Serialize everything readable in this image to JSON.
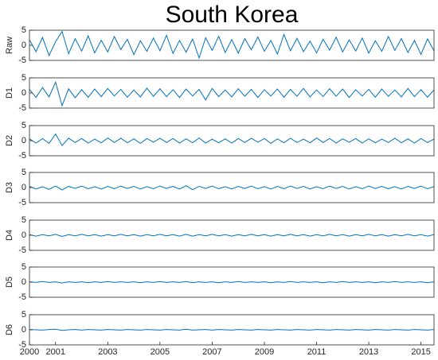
{
  "chart_data": [
    {
      "type": "line",
      "title": "South Korea",
      "ylabel": "Raw",
      "color": "#0072bd",
      "xlim": [
        2000,
        2015.5
      ],
      "ylim": [
        -5,
        5
      ],
      "yticks": [
        -5,
        0,
        5
      ],
      "x": [
        2000,
        2000.25,
        2000.5,
        2000.75,
        2001,
        2001.25,
        2001.5,
        2001.75,
        2002,
        2002.25,
        2002.5,
        2002.75,
        2003,
        2003.25,
        2003.5,
        2003.75,
        2004,
        2004.25,
        2004.5,
        2004.75,
        2005,
        2005.25,
        2005.5,
        2005.75,
        2006,
        2006.25,
        2006.5,
        2006.75,
        2007,
        2007.25,
        2007.5,
        2007.75,
        2008,
        2008.25,
        2008.5,
        2008.75,
        2009,
        2009.25,
        2009.5,
        2009.75,
        2010,
        2010.25,
        2010.5,
        2010.75,
        2011,
        2011.25,
        2011.5,
        2011.75,
        2012,
        2012.25,
        2012.5,
        2012.75,
        2013,
        2013.25,
        2013.5,
        2013.75,
        2014,
        2014.25,
        2014.5,
        2014.75,
        2015,
        2015.25,
        2015.5
      ],
      "values": [
        1.8,
        -2.1,
        2.6,
        -3.4,
        1.2,
        4.6,
        -2.8,
        2.2,
        -1.9,
        3.1,
        -2.5,
        1.7,
        -2.2,
        2.9,
        -1.4,
        2.0,
        -3.1,
        1.5,
        -2.0,
        2.4,
        -1.8,
        3.3,
        -2.7,
        1.6,
        -2.3,
        2.1,
        -4.2,
        2.5,
        -1.7,
        3.0,
        -2.4,
        1.9,
        -2.6,
        2.2,
        -1.5,
        2.8,
        -2.0,
        1.6,
        -2.9,
        3.6,
        -1.8,
        2.3,
        -2.1,
        1.4,
        -2.5,
        2.0,
        -1.6,
        2.7,
        -2.2,
        1.8,
        -1.9,
        2.4,
        -2.6,
        1.5,
        -2.0,
        2.9,
        -1.7,
        2.2,
        -2.4,
        1.6,
        -3.0,
        2.1,
        -1.8
      ]
    },
    {
      "type": "line",
      "ylabel": "D1",
      "color": "#0072bd",
      "xlim": [
        2000,
        2015.5
      ],
      "ylim": [
        -5,
        5
      ],
      "yticks": [
        -5,
        0,
        5
      ],
      "x": [
        2000,
        2000.25,
        2000.5,
        2000.75,
        2001,
        2001.25,
        2001.5,
        2001.75,
        2002,
        2002.25,
        2002.5,
        2002.75,
        2003,
        2003.25,
        2003.5,
        2003.75,
        2004,
        2004.25,
        2004.5,
        2004.75,
        2005,
        2005.25,
        2005.5,
        2005.75,
        2006,
        2006.25,
        2006.5,
        2006.75,
        2007,
        2007.25,
        2007.5,
        2007.75,
        2008,
        2008.25,
        2008.5,
        2008.75,
        2009,
        2009.25,
        2009.5,
        2009.75,
        2010,
        2010.25,
        2010.5,
        2010.75,
        2011,
        2011.25,
        2011.5,
        2011.75,
        2012,
        2012.25,
        2012.5,
        2012.75,
        2013,
        2013.25,
        2013.5,
        2013.75,
        2014,
        2014.25,
        2014.5,
        2014.75,
        2015,
        2015.25,
        2015.5
      ],
      "values": [
        1.2,
        -1.5,
        1.8,
        -1.3,
        3.6,
        -4.2,
        1.4,
        -1.6,
        1.1,
        -1.4,
        1.3,
        -1.2,
        1.5,
        -1.0,
        1.2,
        -1.4,
        1.0,
        -1.3,
        1.6,
        -1.1,
        1.4,
        -1.2,
        1.1,
        -1.5,
        1.3,
        -1.0,
        1.2,
        -2.3,
        1.5,
        -1.2,
        1.0,
        -1.3,
        1.4,
        -1.1,
        1.2,
        -1.5,
        1.1,
        -1.0,
        1.3,
        -1.4,
        1.2,
        -1.1,
        1.5,
        -1.3,
        1.0,
        -1.2,
        1.4,
        -1.1,
        1.3,
        -1.5,
        1.1,
        -1.0,
        1.2,
        -1.4,
        1.3,
        -1.1,
        1.0,
        -1.3,
        1.5,
        -1.2,
        1.1,
        -1.4,
        1.0
      ]
    },
    {
      "type": "line",
      "ylabel": "D2",
      "color": "#0072bd",
      "xlim": [
        2000,
        2015.5
      ],
      "ylim": [
        -5,
        5
      ],
      "yticks": [
        -5,
        0,
        5
      ],
      "x": [
        2000,
        2000.25,
        2000.5,
        2000.75,
        2001,
        2001.25,
        2001.5,
        2001.75,
        2002,
        2002.25,
        2002.5,
        2002.75,
        2003,
        2003.25,
        2003.5,
        2003.75,
        2004,
        2004.25,
        2004.5,
        2004.75,
        2005,
        2005.25,
        2005.5,
        2005.75,
        2006,
        2006.25,
        2006.5,
        2006.75,
        2007,
        2007.25,
        2007.5,
        2007.75,
        2008,
        2008.25,
        2008.5,
        2008.75,
        2009,
        2009.25,
        2009.5,
        2009.75,
        2010,
        2010.25,
        2010.5,
        2010.75,
        2011,
        2011.25,
        2011.5,
        2011.75,
        2012,
        2012.25,
        2012.5,
        2012.75,
        2013,
        2013.25,
        2013.5,
        2013.75,
        2014,
        2014.25,
        2014.5,
        2014.75,
        2015,
        2015.25,
        2015.5
      ],
      "values": [
        0.6,
        -0.8,
        0.7,
        -0.9,
        2.2,
        -1.6,
        0.8,
        -0.6,
        0.7,
        -0.8,
        0.5,
        -0.7,
        0.9,
        -0.6,
        0.8,
        -0.7,
        0.6,
        -0.9,
        0.7,
        -0.5,
        0.8,
        -0.6,
        0.7,
        -0.8,
        0.6,
        -0.7,
        0.9,
        -0.8,
        0.5,
        -0.7,
        0.6,
        -0.8,
        0.7,
        -0.6,
        0.8,
        -0.5,
        0.7,
        -0.9,
        0.6,
        -0.7,
        0.8,
        -0.6,
        0.5,
        -0.7,
        0.9,
        -0.6,
        0.7,
        -0.8,
        0.6,
        -0.5,
        0.7,
        -0.8,
        0.6,
        -0.7,
        0.5,
        -0.6,
        0.8,
        -0.7,
        0.6,
        -0.8,
        0.7,
        -0.6,
        0.5
      ]
    },
    {
      "type": "line",
      "ylabel": "D3",
      "color": "#0072bd",
      "xlim": [
        2000,
        2015.5
      ],
      "ylim": [
        -5,
        5
      ],
      "yticks": [
        -5,
        0,
        5
      ],
      "x": [
        2000,
        2000.25,
        2000.5,
        2000.75,
        2001,
        2001.25,
        2001.5,
        2001.75,
        2002,
        2002.25,
        2002.5,
        2002.75,
        2003,
        2003.25,
        2003.5,
        2003.75,
        2004,
        2004.25,
        2004.5,
        2004.75,
        2005,
        2005.25,
        2005.5,
        2005.75,
        2006,
        2006.25,
        2006.5,
        2006.75,
        2007,
        2007.25,
        2007.5,
        2007.75,
        2008,
        2008.25,
        2008.5,
        2008.75,
        2009,
        2009.25,
        2009.5,
        2009.75,
        2010,
        2010.25,
        2010.5,
        2010.75,
        2011,
        2011.25,
        2011.5,
        2011.75,
        2012,
        2012.25,
        2012.5,
        2012.75,
        2013,
        2013.25,
        2013.5,
        2013.75,
        2014,
        2014.25,
        2014.5,
        2014.75,
        2015,
        2015.25,
        2015.5
      ],
      "values": [
        0.4,
        -0.5,
        0.3,
        -0.6,
        0.5,
        -0.8,
        0.4,
        -0.3,
        0.5,
        -0.4,
        0.3,
        -0.5,
        0.4,
        -0.4,
        0.5,
        -0.3,
        0.4,
        -0.5,
        0.3,
        -0.4,
        0.5,
        -0.3,
        0.4,
        -0.5,
        0.6,
        -0.7,
        0.4,
        -0.3,
        0.5,
        -0.4,
        0.3,
        -0.5,
        0.4,
        -0.3,
        0.5,
        -0.4,
        0.3,
        -0.5,
        0.4,
        -0.4,
        0.5,
        -0.3,
        0.4,
        -0.5,
        0.3,
        -0.4,
        0.5,
        -0.3,
        0.4,
        -0.5,
        0.3,
        -0.4,
        0.5,
        -0.3,
        0.4,
        -0.4,
        0.3,
        -0.5,
        0.4,
        -0.3,
        0.5,
        -0.4,
        0.3
      ]
    },
    {
      "type": "line",
      "ylabel": "D4",
      "color": "#0072bd",
      "xlim": [
        2000,
        2015.5
      ],
      "ylim": [
        -5,
        5
      ],
      "yticks": [
        -5,
        0,
        5
      ],
      "x": [
        2000,
        2000.25,
        2000.5,
        2000.75,
        2001,
        2001.25,
        2001.5,
        2001.75,
        2002,
        2002.25,
        2002.5,
        2002.75,
        2003,
        2003.25,
        2003.5,
        2003.75,
        2004,
        2004.25,
        2004.5,
        2004.75,
        2005,
        2005.25,
        2005.5,
        2005.75,
        2006,
        2006.25,
        2006.5,
        2006.75,
        2007,
        2007.25,
        2007.5,
        2007.75,
        2008,
        2008.25,
        2008.5,
        2008.75,
        2009,
        2009.25,
        2009.5,
        2009.75,
        2010,
        2010.25,
        2010.5,
        2010.75,
        2011,
        2011.25,
        2011.5,
        2011.75,
        2012,
        2012.25,
        2012.5,
        2012.75,
        2013,
        2013.25,
        2013.5,
        2013.75,
        2014,
        2014.25,
        2014.5,
        2014.75,
        2015,
        2015.25,
        2015.5
      ],
      "values": [
        0.2,
        -0.3,
        0.2,
        -0.2,
        0.3,
        -0.4,
        0.2,
        -0.2,
        0.3,
        -0.2,
        0.2,
        -0.3,
        0.2,
        -0.2,
        0.3,
        -0.2,
        0.2,
        -0.3,
        0.2,
        -0.2,
        0.3,
        -0.2,
        0.2,
        -0.3,
        0.3,
        -0.3,
        0.2,
        -0.2,
        0.3,
        -0.2,
        0.2,
        -0.3,
        0.2,
        -0.2,
        0.3,
        -0.2,
        0.2,
        -0.3,
        0.2,
        -0.2,
        0.3,
        -0.2,
        0.2,
        -0.3,
        0.2,
        -0.2,
        0.3,
        -0.2,
        0.2,
        -0.3,
        0.2,
        -0.2,
        0.3,
        -0.2,
        0.2,
        -0.3,
        0.2,
        -0.2,
        0.3,
        -0.2,
        0.2,
        -0.3,
        0.2
      ]
    },
    {
      "type": "line",
      "ylabel": "D5",
      "color": "#0072bd",
      "xlim": [
        2000,
        2015.5
      ],
      "ylim": [
        -5,
        5
      ],
      "yticks": [
        -5,
        0,
        5
      ],
      "x": [
        2000,
        2000.25,
        2000.5,
        2000.75,
        2001,
        2001.25,
        2001.5,
        2001.75,
        2002,
        2002.25,
        2002.5,
        2002.75,
        2003,
        2003.25,
        2003.5,
        2003.75,
        2004,
        2004.25,
        2004.5,
        2004.75,
        2005,
        2005.25,
        2005.5,
        2005.75,
        2006,
        2006.25,
        2006.5,
        2006.75,
        2007,
        2007.25,
        2007.5,
        2007.75,
        2008,
        2008.25,
        2008.5,
        2008.75,
        2009,
        2009.25,
        2009.5,
        2009.75,
        2010,
        2010.25,
        2010.5,
        2010.75,
        2011,
        2011.25,
        2011.5,
        2011.75,
        2012,
        2012.25,
        2012.5,
        2012.75,
        2013,
        2013.25,
        2013.5,
        2013.75,
        2014,
        2014.25,
        2014.5,
        2014.75,
        2015,
        2015.25,
        2015.5
      ],
      "values": [
        0.1,
        -0.1,
        0.2,
        -0.1,
        0.1,
        -0.3,
        0.1,
        -0.1,
        0.1,
        -0.2,
        0.1,
        -0.1,
        0.2,
        -0.1,
        0.1,
        -0.1,
        0.1,
        -0.2,
        0.1,
        -0.1,
        0.2,
        -0.1,
        0.1,
        -0.1,
        0.2,
        -0.2,
        0.1,
        -0.1,
        0.1,
        -0.2,
        0.1,
        -0.1,
        0.2,
        -0.1,
        0.1,
        -0.1,
        0.1,
        -0.2,
        0.1,
        -0.1,
        0.2,
        -0.1,
        0.1,
        -0.1,
        0.1,
        -0.2,
        0.1,
        -0.1,
        0.2,
        -0.1,
        0.1,
        -0.1,
        0.1,
        -0.2,
        0.1,
        -0.1,
        0.2,
        -0.1,
        0.1,
        -0.1,
        0.1,
        -0.2,
        0.1
      ]
    },
    {
      "type": "line",
      "ylabel": "D6",
      "color": "#0072bd",
      "xlim": [
        2000,
        2015.5
      ],
      "ylim": [
        -5,
        5
      ],
      "yticks": [
        -5,
        0,
        5
      ],
      "xticks": [
        2000,
        2001,
        2003,
        2005,
        2007,
        2009,
        2011,
        2013,
        2015
      ],
      "x": [
        2000,
        2000.25,
        2000.5,
        2000.75,
        2001,
        2001.25,
        2001.5,
        2001.75,
        2002,
        2002.25,
        2002.5,
        2002.75,
        2003,
        2003.25,
        2003.5,
        2003.75,
        2004,
        2004.25,
        2004.5,
        2004.75,
        2005,
        2005.25,
        2005.5,
        2005.75,
        2006,
        2006.25,
        2006.5,
        2006.75,
        2007,
        2007.25,
        2007.5,
        2007.75,
        2008,
        2008.25,
        2008.5,
        2008.75,
        2009,
        2009.25,
        2009.5,
        2009.75,
        2010,
        2010.25,
        2010.5,
        2010.75,
        2011,
        2011.25,
        2011.5,
        2011.75,
        2012,
        2012.25,
        2012.5,
        2012.75,
        2013,
        2013.25,
        2013.5,
        2013.75,
        2014,
        2014.25,
        2014.5,
        2014.75,
        2015,
        2015.25,
        2015.5
      ],
      "values": [
        0.1,
        0,
        -0.1,
        0.1,
        0.2,
        -0.2,
        0,
        0.1,
        -0.1,
        0.1,
        0,
        -0.1,
        0.1,
        0,
        -0.1,
        0.1,
        0,
        -0.1,
        0.1,
        0,
        -0.1,
        0.1,
        0,
        -0.1,
        0.2,
        -0.1,
        0,
        0.1,
        -0.1,
        0.1,
        0,
        -0.1,
        0.1,
        0,
        -0.1,
        0.1,
        0,
        -0.1,
        0.1,
        0,
        -0.1,
        0.1,
        0,
        -0.1,
        0.1,
        0,
        -0.1,
        0.1,
        0,
        -0.1,
        0.1,
        0,
        -0.1,
        0.1,
        0,
        -0.1,
        0.1,
        0,
        -0.1,
        0.1,
        0,
        -0.1,
        0.1
      ]
    }
  ]
}
